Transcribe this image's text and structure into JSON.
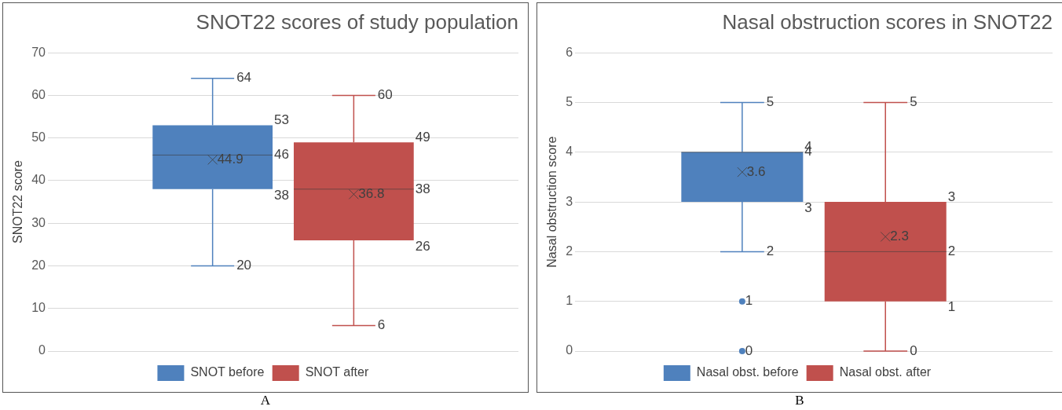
{
  "chart_data": [
    {
      "type": "box",
      "title": "SNOT22 scores of study population",
      "ylabel": "SNOT22 score",
      "categories": [
        null
      ],
      "series": [
        {
          "name": "SNOT before",
          "color": "#4f81bd",
          "boxes": [
            {
              "low": 20,
              "q1": 38,
              "median": 46,
              "q3": 53,
              "high": 64,
              "mean": 44.9
            }
          ],
          "value_labels": [
            [
              "64",
              "53",
              "46",
              "44.9",
              "38",
              "20"
            ]
          ]
        },
        {
          "name": "SNOT after",
          "color": "#c0504d",
          "boxes": [
            {
              "low": 6,
              "q1": 26,
              "median": 38,
              "q3": 49,
              "high": 60,
              "mean": 36.8
            }
          ],
          "value_labels": [
            [
              "60",
              "49",
              "38",
              "36.8",
              "26",
              "6"
            ]
          ]
        }
      ],
      "ylim": [
        0,
        70
      ],
      "yticks": [
        0,
        10,
        20,
        30,
        40,
        50,
        60,
        70
      ],
      "grid": "y",
      "legend": "bottom",
      "marker": "cross",
      "annotations": [
        "A"
      ]
    },
    {
      "type": "box",
      "title": "Nasal obstruction scores in SNOT22",
      "ylabel": "Nasal obstruction score",
      "categories": [
        null
      ],
      "series": [
        {
          "name": "Nasal obst. before",
          "color": "#4f81bd",
          "boxes": [
            {
              "low": 2,
              "q1": 3,
              "median": 4,
              "q3": 4,
              "high": 5,
              "mean": 3.6,
              "outliers": [
                1,
                0
              ]
            }
          ],
          "value_labels": [
            [
              "5",
              "4",
              "4",
              "3.6",
              "3",
              "2",
              "1",
              "0"
            ]
          ]
        },
        {
          "name": "Nasal obst. after",
          "color": "#c0504d",
          "boxes": [
            {
              "low": 0,
              "q1": 1,
              "median": 2,
              "q3": 3,
              "high": 5,
              "mean": 2.3
            }
          ],
          "value_labels": [
            [
              "5",
              "3",
              "2",
              "2.3",
              "1",
              "0"
            ]
          ]
        }
      ],
      "ylim": [
        0,
        6
      ],
      "yticks": [
        0,
        1,
        2,
        3,
        4,
        5,
        6
      ],
      "grid": "y",
      "legend": "bottom",
      "marker": "cross",
      "annotations": [
        "B"
      ]
    }
  ]
}
